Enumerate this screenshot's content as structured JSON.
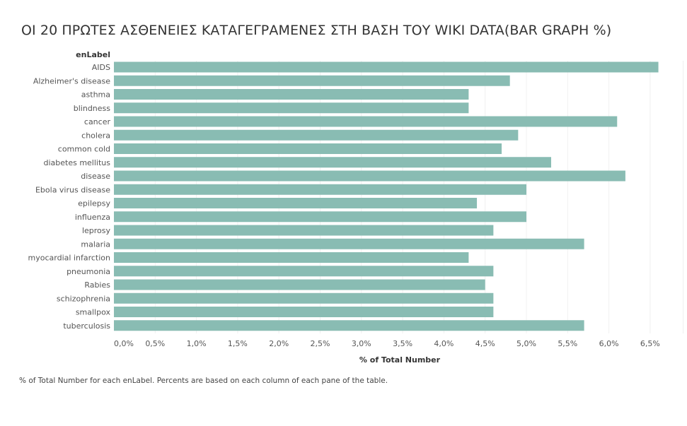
{
  "title": "ΟΙ 20 ΠΡΩΤΕΣ ΑΣΘΕΝΕΙΕΣ ΚΑΤΑΓΕΓΡΑΜΕΝΕΣ ΣΤΗ ΒΑΣΗ ΤΟΥ WIKI DATA(BAR GRAPH %)",
  "footnote": "% of Total Number for each enLabel. Percents are based on each column of each pane of the table.",
  "colors": {
    "bar": "#89bcb3"
  },
  "chart_data": {
    "type": "bar",
    "orientation": "horizontal",
    "field_label": "enLabel",
    "xlabel": "% of Total Number",
    "xlim": [
      0,
      6.9
    ],
    "grid": true,
    "categories": [
      "AIDS",
      "Alzheimer's disease",
      "asthma",
      "blindness",
      "cancer",
      "cholera",
      "common cold",
      "diabetes mellitus",
      "disease",
      "Ebola virus disease",
      "epilepsy",
      "influenza",
      "leprosy",
      "malaria",
      "myocardial infarction",
      "pneumonia",
      "Rabies",
      "schizophrenia",
      "smallpox",
      "tuberculosis"
    ],
    "values": [
      6.6,
      4.8,
      4.3,
      4.3,
      6.1,
      4.9,
      4.7,
      5.3,
      6.2,
      5.0,
      4.4,
      5.0,
      4.6,
      5.7,
      4.3,
      4.6,
      4.5,
      4.6,
      4.6,
      5.7
    ],
    "ticks": [
      0,
      0.5,
      1,
      1.5,
      2,
      2.5,
      3,
      3.5,
      4,
      4.5,
      5,
      5.5,
      6,
      6.5
    ],
    "tick_labels": [
      "0,0%",
      "0,5%",
      "1,0%",
      "1,5%",
      "2,0%",
      "2,5%",
      "3,0%",
      "3,5%",
      "4,0%",
      "4,5%",
      "5,0%",
      "5,5%",
      "6,0%",
      "6,5%"
    ]
  }
}
